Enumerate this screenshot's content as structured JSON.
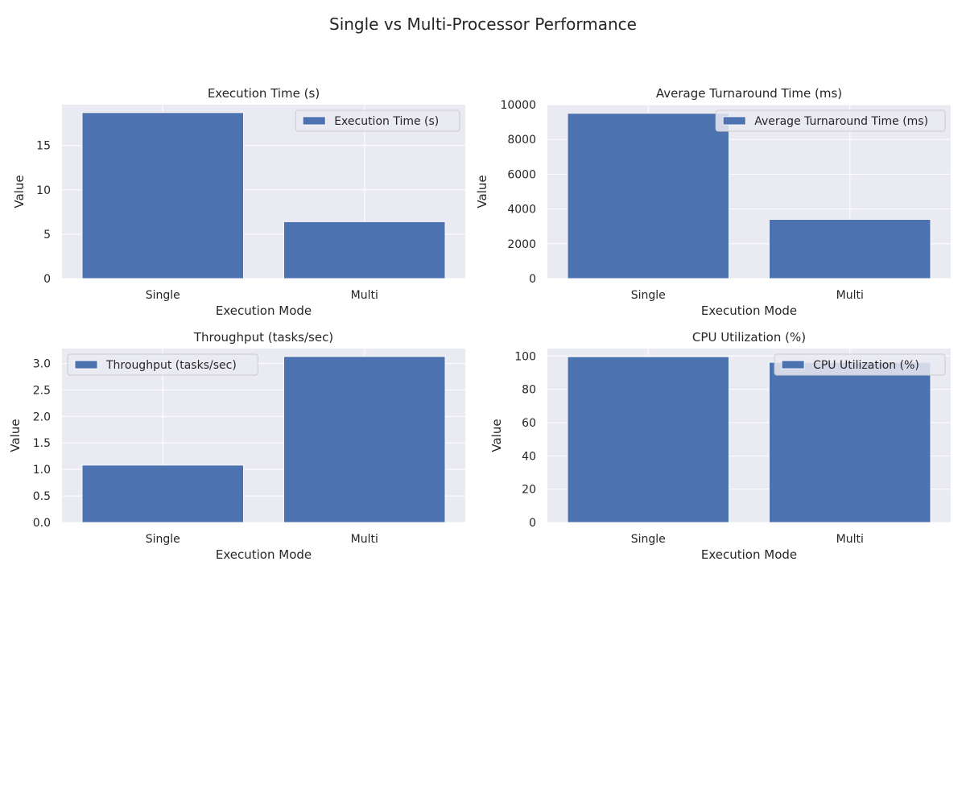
{
  "figure": {
    "suptitle": "Single vs Multi-Processor Performance",
    "colors": {
      "bar": "#4c72b0",
      "axes_background": "#eaeaf2",
      "grid": "#ffffff",
      "legend_background": "#eaeaf2",
      "legend_border": "#cccccc"
    }
  },
  "chart_data": [
    {
      "type": "bar",
      "title": "Execution Time (s)",
      "xlabel": "Execution Mode",
      "ylabel": "Value",
      "categories": [
        "Single",
        "Multi"
      ],
      "series": [
        {
          "name": "Execution Time (s)",
          "values": [
            18.7,
            6.4
          ]
        }
      ],
      "ylim": [
        0,
        19.6
      ],
      "yticks": [
        0,
        5,
        10,
        15
      ],
      "ytick_labels": [
        "0",
        "5",
        "10",
        "15"
      ],
      "grid": true,
      "legend": "upper right"
    },
    {
      "type": "bar",
      "title": "Average Turnaround Time (ms)",
      "xlabel": "Execution Mode",
      "ylabel": "Value",
      "categories": [
        "Single",
        "Multi"
      ],
      "series": [
        {
          "name": "Average Turnaround Time (ms)",
          "values": [
            9500,
            3400
          ]
        }
      ],
      "ylim": [
        0,
        10000
      ],
      "yticks": [
        0,
        2000,
        4000,
        6000,
        8000,
        10000
      ],
      "ytick_labels": [
        "0",
        "2000",
        "4000",
        "6000",
        "8000",
        "10000"
      ],
      "grid": true,
      "legend": "upper right"
    },
    {
      "type": "bar",
      "title": "Throughput (tasks/sec)",
      "xlabel": "Execution Mode",
      "ylabel": "Value",
      "categories": [
        "Single",
        "Multi"
      ],
      "series": [
        {
          "name": "Throughput (tasks/sec)",
          "values": [
            1.08,
            3.13
          ]
        }
      ],
      "ylim": [
        0,
        3.28
      ],
      "yticks": [
        0,
        0.5,
        1.0,
        1.5,
        2.0,
        2.5,
        3.0
      ],
      "ytick_labels": [
        "0.0",
        "0.5",
        "1.0",
        "1.5",
        "2.0",
        "2.5",
        "3.0"
      ],
      "grid": true,
      "legend": "upper left"
    },
    {
      "type": "bar",
      "title": "CPU Utilization (%)",
      "xlabel": "Execution Mode",
      "ylabel": "Value",
      "categories": [
        "Single",
        "Multi"
      ],
      "series": [
        {
          "name": "CPU Utilization (%)",
          "values": [
            99.6,
            96.2
          ]
        }
      ],
      "ylim": [
        0,
        104.5
      ],
      "yticks": [
        0,
        20,
        40,
        60,
        80,
        100
      ],
      "ytick_labels": [
        "0",
        "20",
        "40",
        "60",
        "80",
        "100"
      ],
      "grid": true,
      "legend": "upper right"
    }
  ]
}
